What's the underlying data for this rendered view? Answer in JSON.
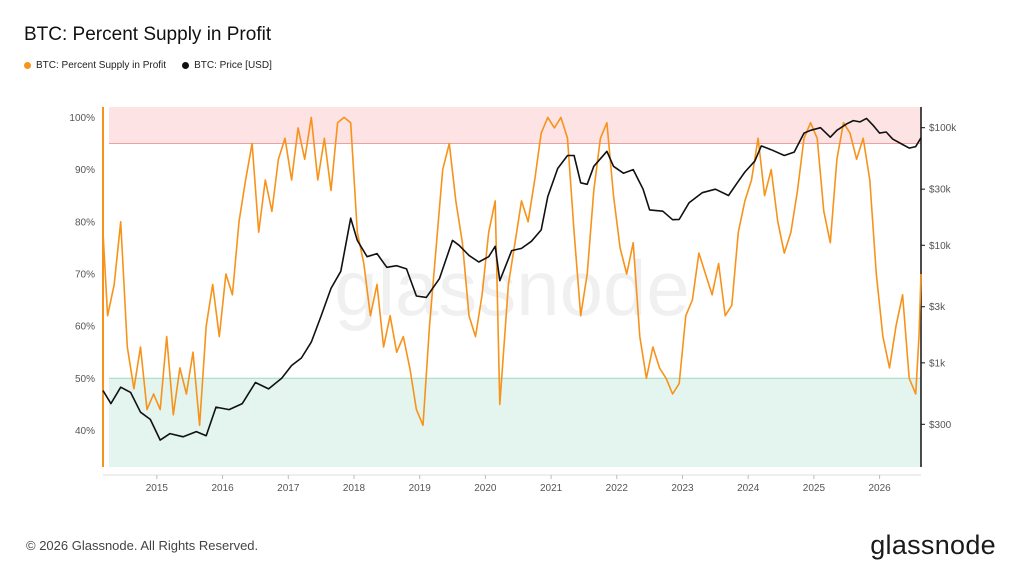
{
  "chart_data": {
    "type": "line",
    "title": "BTC: Percent Supply in Profit",
    "watermark": "glassnode",
    "legend_placement": "top-left",
    "x_ticks": [
      "2015",
      "2016",
      "2017",
      "2018",
      "2019",
      "2020",
      "2021",
      "2022",
      "2023",
      "2024",
      "2025",
      "2026"
    ],
    "y_left_ticks": [
      "100%",
      "90%",
      "80%",
      "70%",
      "60%",
      "50%",
      "40%"
    ],
    "y_left_range": [
      33,
      102
    ],
    "y_right_ticks": [
      "$100k",
      "$30k",
      "$10k",
      "$3k",
      "$1k",
      "$300"
    ],
    "y_right_scale": "log",
    "y_right_range": [
      130,
      150000
    ],
    "x_range": [
      2014.18,
      2026.63
    ],
    "bands": [
      {
        "name": "high",
        "from": 95,
        "to": 103,
        "color": "#fde3e3",
        "line_color": "#f0a0a0"
      },
      {
        "name": "low",
        "from": 33,
        "to": 50,
        "color": "#e3f5ee",
        "line_color": "#9fd8c0"
      }
    ],
    "series": [
      {
        "name": "BTC: Percent Supply in Profit",
        "color": "#f7931a",
        "axis": "left",
        "points": [
          [
            2014.18,
            78
          ],
          [
            2014.25,
            62
          ],
          [
            2014.35,
            68
          ],
          [
            2014.45,
            80
          ],
          [
            2014.55,
            56
          ],
          [
            2014.65,
            48
          ],
          [
            2014.75,
            56
          ],
          [
            2014.85,
            44
          ],
          [
            2014.95,
            47
          ],
          [
            2015.05,
            44
          ],
          [
            2015.15,
            58
          ],
          [
            2015.25,
            43
          ],
          [
            2015.35,
            52
          ],
          [
            2015.45,
            47
          ],
          [
            2015.55,
            55
          ],
          [
            2015.65,
            41
          ],
          [
            2015.75,
            60
          ],
          [
            2015.85,
            68
          ],
          [
            2015.95,
            58
          ],
          [
            2016.05,
            70
          ],
          [
            2016.15,
            66
          ],
          [
            2016.25,
            80
          ],
          [
            2016.35,
            88
          ],
          [
            2016.45,
            95
          ],
          [
            2016.55,
            78
          ],
          [
            2016.65,
            88
          ],
          [
            2016.75,
            82
          ],
          [
            2016.85,
            92
          ],
          [
            2016.95,
            96
          ],
          [
            2017.05,
            88
          ],
          [
            2017.15,
            98
          ],
          [
            2017.25,
            92
          ],
          [
            2017.35,
            100
          ],
          [
            2017.45,
            88
          ],
          [
            2017.55,
            96
          ],
          [
            2017.65,
            86
          ],
          [
            2017.75,
            99
          ],
          [
            2017.85,
            100
          ],
          [
            2017.95,
            99
          ],
          [
            2018.05,
            78
          ],
          [
            2018.15,
            72
          ],
          [
            2018.25,
            62
          ],
          [
            2018.35,
            68
          ],
          [
            2018.45,
            56
          ],
          [
            2018.55,
            62
          ],
          [
            2018.65,
            55
          ],
          [
            2018.75,
            58
          ],
          [
            2018.85,
            52
          ],
          [
            2018.95,
            44
          ],
          [
            2019.05,
            41
          ],
          [
            2019.15,
            60
          ],
          [
            2019.25,
            75
          ],
          [
            2019.35,
            90
          ],
          [
            2019.45,
            95
          ],
          [
            2019.55,
            84
          ],
          [
            2019.65,
            76
          ],
          [
            2019.75,
            62
          ],
          [
            2019.85,
            58
          ],
          [
            2019.95,
            66
          ],
          [
            2020.05,
            78
          ],
          [
            2020.15,
            84
          ],
          [
            2020.22,
            45
          ],
          [
            2020.35,
            68
          ],
          [
            2020.45,
            76
          ],
          [
            2020.55,
            84
          ],
          [
            2020.65,
            80
          ],
          [
            2020.75,
            88
          ],
          [
            2020.85,
            97
          ],
          [
            2020.95,
            100
          ],
          [
            2021.05,
            98
          ],
          [
            2021.15,
            100
          ],
          [
            2021.25,
            96
          ],
          [
            2021.35,
            78
          ],
          [
            2021.45,
            62
          ],
          [
            2021.55,
            70
          ],
          [
            2021.65,
            86
          ],
          [
            2021.75,
            96
          ],
          [
            2021.85,
            99
          ],
          [
            2021.95,
            85
          ],
          [
            2022.05,
            75
          ],
          [
            2022.15,
            70
          ],
          [
            2022.25,
            76
          ],
          [
            2022.35,
            58
          ],
          [
            2022.45,
            50
          ],
          [
            2022.55,
            56
          ],
          [
            2022.65,
            52
          ],
          [
            2022.75,
            50
          ],
          [
            2022.85,
            47
          ],
          [
            2022.95,
            49
          ],
          [
            2023.05,
            62
          ],
          [
            2023.15,
            65
          ],
          [
            2023.25,
            74
          ],
          [
            2023.35,
            70
          ],
          [
            2023.45,
            66
          ],
          [
            2023.55,
            72
          ],
          [
            2023.65,
            62
          ],
          [
            2023.75,
            64
          ],
          [
            2023.85,
            78
          ],
          [
            2023.95,
            84
          ],
          [
            2024.05,
            88
          ],
          [
            2024.15,
            96
          ],
          [
            2024.25,
            85
          ],
          [
            2024.35,
            90
          ],
          [
            2024.45,
            80
          ],
          [
            2024.55,
            74
          ],
          [
            2024.65,
            78
          ],
          [
            2024.75,
            86
          ],
          [
            2024.85,
            96
          ],
          [
            2024.95,
            99
          ],
          [
            2025.05,
            96
          ],
          [
            2025.15,
            82
          ],
          [
            2025.25,
            76
          ],
          [
            2025.35,
            92
          ],
          [
            2025.45,
            99
          ],
          [
            2025.55,
            97
          ],
          [
            2025.65,
            92
          ],
          [
            2025.75,
            96
          ],
          [
            2025.85,
            88
          ],
          [
            2025.95,
            70
          ],
          [
            2026.05,
            58
          ],
          [
            2026.15,
            52
          ],
          [
            2026.25,
            60
          ],
          [
            2026.35,
            66
          ],
          [
            2026.45,
            50
          ],
          [
            2026.55,
            47
          ],
          [
            2026.6,
            58
          ],
          [
            2026.63,
            70
          ]
        ]
      },
      {
        "name": "BTC: Price [USD]",
        "color": "#111111",
        "axis": "right",
        "points": [
          [
            2014.18,
            580
          ],
          [
            2014.3,
            450
          ],
          [
            2014.45,
            620
          ],
          [
            2014.6,
            560
          ],
          [
            2014.75,
            380
          ],
          [
            2014.9,
            330
          ],
          [
            2015.05,
            220
          ],
          [
            2015.2,
            250
          ],
          [
            2015.4,
            235
          ],
          [
            2015.6,
            260
          ],
          [
            2015.75,
            240
          ],
          [
            2015.9,
            420
          ],
          [
            2016.1,
            400
          ],
          [
            2016.3,
            450
          ],
          [
            2016.5,
            680
          ],
          [
            2016.7,
            600
          ],
          [
            2016.9,
            740
          ],
          [
            2017.05,
            950
          ],
          [
            2017.2,
            1100
          ],
          [
            2017.35,
            1500
          ],
          [
            2017.5,
            2500
          ],
          [
            2017.65,
            4300
          ],
          [
            2017.8,
            6000
          ],
          [
            2017.95,
            17000
          ],
          [
            2018.05,
            11000
          ],
          [
            2018.2,
            8000
          ],
          [
            2018.35,
            8500
          ],
          [
            2018.5,
            6500
          ],
          [
            2018.65,
            6700
          ],
          [
            2018.8,
            6300
          ],
          [
            2018.95,
            3700
          ],
          [
            2019.1,
            3600
          ],
          [
            2019.3,
            5200
          ],
          [
            2019.5,
            11000
          ],
          [
            2019.6,
            10000
          ],
          [
            2019.75,
            8200
          ],
          [
            2019.9,
            7200
          ],
          [
            2020.05,
            8000
          ],
          [
            2020.15,
            9800
          ],
          [
            2020.22,
            5000
          ],
          [
            2020.4,
            9000
          ],
          [
            2020.55,
            9400
          ],
          [
            2020.7,
            10800
          ],
          [
            2020.85,
            13500
          ],
          [
            2020.95,
            26000
          ],
          [
            2021.1,
            45000
          ],
          [
            2021.25,
            58000
          ],
          [
            2021.35,
            58000
          ],
          [
            2021.45,
            34000
          ],
          [
            2021.55,
            33000
          ],
          [
            2021.65,
            47000
          ],
          [
            2021.85,
            63000
          ],
          [
            2021.95,
            47000
          ],
          [
            2022.1,
            41000
          ],
          [
            2022.25,
            44000
          ],
          [
            2022.4,
            30000
          ],
          [
            2022.5,
            20000
          ],
          [
            2022.7,
            19500
          ],
          [
            2022.85,
            16500
          ],
          [
            2022.95,
            16600
          ],
          [
            2023.1,
            23000
          ],
          [
            2023.3,
            28000
          ],
          [
            2023.5,
            30000
          ],
          [
            2023.7,
            26500
          ],
          [
            2023.85,
            35000
          ],
          [
            2023.95,
            42000
          ],
          [
            2024.1,
            52000
          ],
          [
            2024.2,
            70000
          ],
          [
            2024.35,
            65000
          ],
          [
            2024.55,
            58000
          ],
          [
            2024.7,
            62000
          ],
          [
            2024.85,
            90000
          ],
          [
            2024.95,
            95000
          ],
          [
            2025.1,
            100000
          ],
          [
            2025.25,
            83000
          ],
          [
            2025.35,
            95000
          ],
          [
            2025.5,
            108000
          ],
          [
            2025.6,
            115000
          ],
          [
            2025.7,
            112000
          ],
          [
            2025.8,
            120000
          ],
          [
            2025.9,
            105000
          ],
          [
            2026.0,
            90000
          ],
          [
            2026.1,
            92000
          ],
          [
            2026.2,
            80000
          ],
          [
            2026.35,
            72000
          ],
          [
            2026.45,
            67000
          ],
          [
            2026.55,
            69000
          ],
          [
            2026.63,
            82000
          ]
        ]
      }
    ]
  },
  "footer": {
    "copyright": "© 2026 Glassnode. All Rights Reserved.",
    "brand": "glassnode"
  }
}
